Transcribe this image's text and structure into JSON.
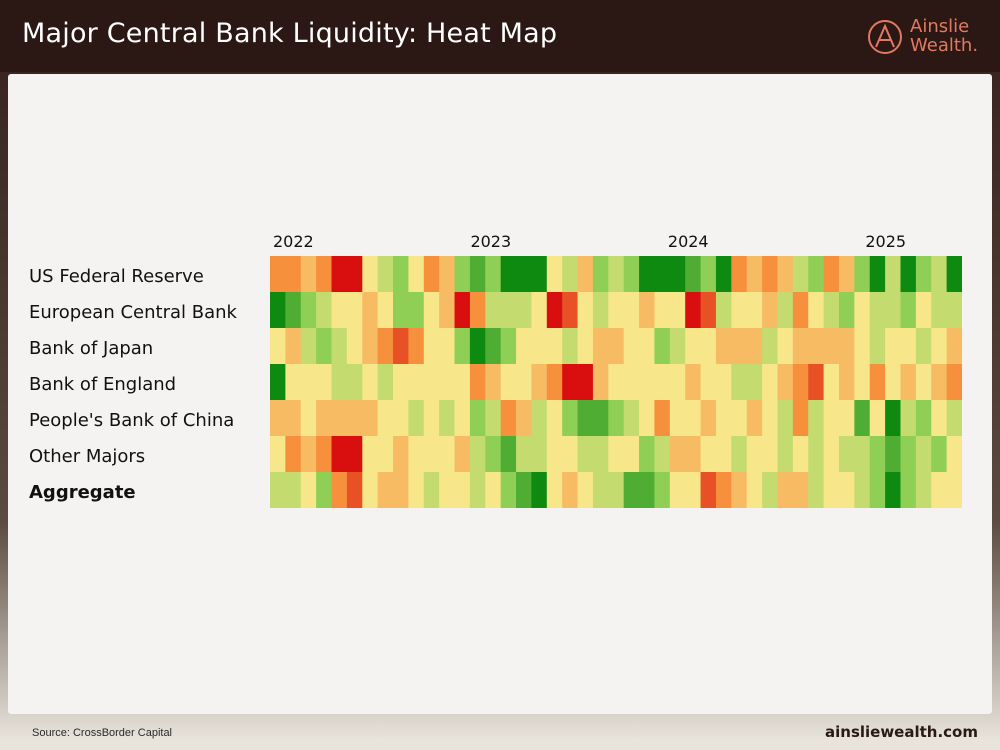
{
  "header": {
    "title": "Major Central Bank Liquidity: Heat Map",
    "logo": {
      "line1": "Ainslie",
      "line2": "Wealth."
    }
  },
  "footer": {
    "source": "Source: CrossBorder Capital",
    "site": "ainsliewealth.com"
  },
  "colors": {
    "header_bg": "#2b1713",
    "logo_accent": "#e07a62",
    "panel_bg": "#f4f3f2",
    "scale": [
      "#d90f0f",
      "#f6903d",
      "#f8e68a",
      "#8fcf55",
      "#0e8a10"
    ]
  },
  "chart_data": {
    "type": "heatmap",
    "title": "Major Central Bank Liquidity: Heat Map",
    "x_tick_labels": [
      "2022",
      "2023",
      "2024",
      "2025"
    ],
    "x_tick_columns": [
      0,
      12,
      24,
      36
    ],
    "rows": [
      "US Federal Reserve",
      "European Central Bank",
      "Bank of Japan",
      "Bank of England",
      "People's Bank of China",
      "Other Majors",
      "Aggregate"
    ],
    "bold_rows": [
      "Aggregate"
    ],
    "value_scale": {
      "min": -2,
      "max": 2,
      "negative": "red",
      "positive": "green"
    },
    "columns": 45,
    "values": [
      [
        -1,
        -1,
        -0.5,
        -1,
        -2,
        -2,
        0,
        0.5,
        1,
        0,
        -1,
        -0.5,
        1,
        1.5,
        1,
        2,
        2,
        2,
        0,
        0.5,
        -0.5,
        1,
        0.5,
        1,
        2,
        2,
        2,
        1.5,
        1,
        2,
        -1,
        -0.5,
        -1,
        -0.5,
        0.5,
        1,
        -1,
        -0.5,
        1,
        2,
        0.5,
        2,
        1,
        0.5,
        2
      ],
      [
        2,
        1.5,
        1,
        0.5,
        0,
        0,
        -0.5,
        0,
        1,
        1,
        0,
        -0.5,
        -2,
        -1,
        0.5,
        0.5,
        0.5,
        0,
        -2,
        -1.5,
        0,
        0.5,
        0,
        0,
        -0.5,
        0,
        0,
        -2,
        -1.5,
        0.5,
        0,
        0,
        -0.5,
        0.5,
        -1,
        0,
        0.5,
        1,
        0,
        0.5,
        0.5,
        1,
        0,
        0.5,
        0.5
      ],
      [
        0,
        -0.5,
        0.5,
        1,
        0.5,
        0,
        -0.5,
        -1,
        -1.5,
        -1,
        0,
        0,
        1,
        2,
        1.5,
        1,
        0,
        0,
        0,
        0.5,
        0,
        -0.5,
        -0.5,
        0,
        0,
        1,
        0.5,
        0,
        0,
        -0.5,
        -0.5,
        -0.5,
        0.5,
        0,
        -0.5,
        -0.5,
        -0.5,
        -0.5,
        0,
        0.5,
        0,
        0,
        0.5,
        0,
        -0.5
      ],
      [
        2,
        0,
        0,
        0,
        0.5,
        0.5,
        0,
        0.5,
        0,
        0,
        0,
        0,
        0,
        -1,
        -0.5,
        0,
        0,
        -0.5,
        -1,
        -2,
        -2,
        -0.5,
        0,
        0,
        0,
        0,
        0,
        -0.5,
        0,
        0,
        0.5,
        0.5,
        0,
        -0.5,
        -1,
        -1.5,
        0,
        -0.5,
        0,
        -1,
        0,
        -0.5,
        0,
        -0.5,
        -1
      ],
      [
        -0.5,
        -0.5,
        0,
        -0.5,
        -0.5,
        -0.5,
        -0.5,
        0,
        0,
        0.5,
        0,
        0.5,
        0,
        1,
        0.5,
        -1,
        -0.5,
        0.5,
        0,
        1,
        1.5,
        1.5,
        1,
        0.5,
        0,
        -1,
        0,
        0,
        -0.5,
        0,
        0,
        -0.5,
        0,
        0.5,
        -1,
        0.5,
        0,
        0,
        1.5,
        0,
        2,
        0.5,
        1,
        0,
        0.5
      ],
      [
        0,
        -1,
        -0.5,
        -1,
        -2,
        -2,
        0,
        0,
        -0.5,
        0,
        0,
        0,
        -0.5,
        0.5,
        1,
        1.5,
        0.5,
        0.5,
        0,
        0,
        0.5,
        0.5,
        0,
        0,
        1,
        0.5,
        -0.5,
        -0.5,
        0,
        0,
        0.5,
        0,
        0,
        0.5,
        0,
        0.5,
        0,
        0.5,
        0.5,
        1,
        1.5,
        1,
        0.5,
        1,
        0
      ],
      [
        0.5,
        0.5,
        0,
        1,
        -1,
        -1.5,
        0,
        -0.5,
        -0.5,
        0,
        0.5,
        0,
        0,
        0.5,
        0,
        1,
        1.5,
        2,
        0,
        -0.5,
        0,
        0.5,
        0.5,
        1.5,
        1.5,
        1,
        0,
        0,
        -1.5,
        -1,
        -0.5,
        0,
        0.5,
        -0.5,
        -0.5,
        0.5,
        0,
        0,
        0.5,
        1,
        2,
        1,
        0.5,
        0,
        0
      ]
    ]
  }
}
